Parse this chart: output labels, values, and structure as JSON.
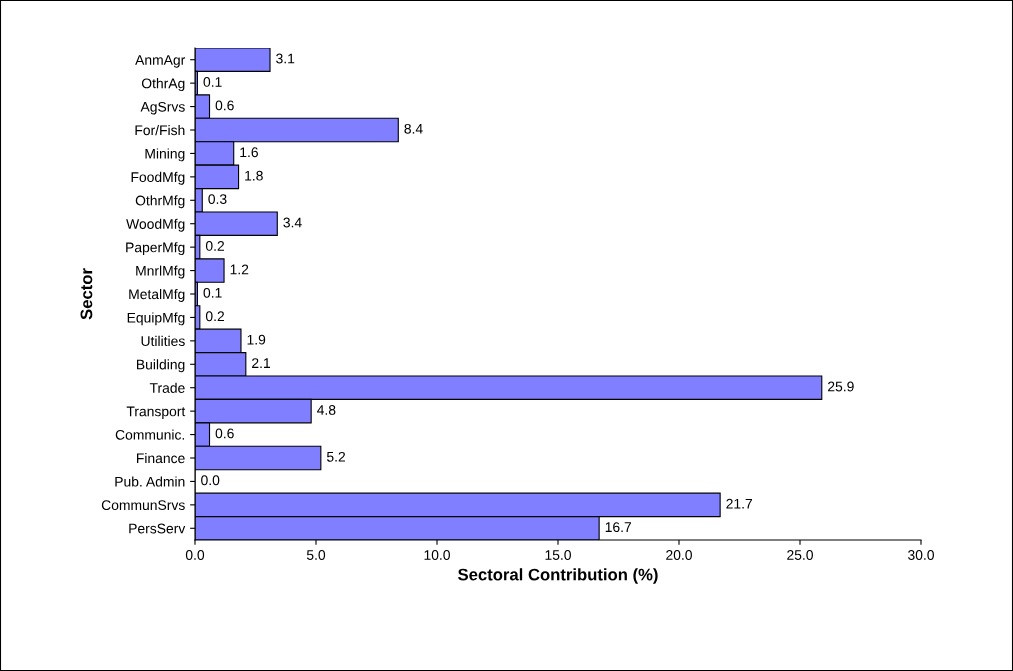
{
  "chart_data": {
    "type": "bar",
    "orientation": "horizontal",
    "xlabel": "Sectoral Contribution (%)",
    "ylabel": "Sector",
    "categories": [
      "AnmAgr",
      "OthrAg",
      "AgSrvs",
      "For/Fish",
      "Mining",
      "FoodMfg",
      "OthrMfg",
      "WoodMfg",
      "PaperMfg",
      "MnrlMfg",
      "MetalMfg",
      "EquipMfg",
      "Utilities",
      "Building",
      "Trade",
      "Transport",
      "Communic.",
      "Finance",
      "Pub. Admin",
      "CommunSrvs",
      "PersServ"
    ],
    "values": [
      3.1,
      0.1,
      0.6,
      8.4,
      1.6,
      1.8,
      0.3,
      3.4,
      0.2,
      1.2,
      0.1,
      0.2,
      1.9,
      2.1,
      25.9,
      4.8,
      0.6,
      5.2,
      0.0,
      21.7,
      16.7
    ],
    "value_labels": [
      "3.1",
      "0.1",
      "0.6",
      "8.4",
      "1.6",
      "1.8",
      "0.3",
      "3.4",
      "0.2",
      "1.2",
      "0.1",
      "0.2",
      "1.9",
      "2.1",
      "25.9",
      "4.8",
      "0.6",
      "5.2",
      "0.0",
      "21.7",
      "16.7"
    ],
    "color": "#7f7fff",
    "xlim": [
      0,
      30
    ],
    "xticks": [
      {
        "value": 0,
        "label": "0.0"
      },
      {
        "value": 5,
        "label": "5.0"
      },
      {
        "value": 10,
        "label": "10.0"
      },
      {
        "value": 15,
        "label": "15.0"
      },
      {
        "value": 20,
        "label": "20.0"
      },
      {
        "value": 25,
        "label": "25.0"
      },
      {
        "value": 30,
        "label": "30.0"
      }
    ],
    "grid": false,
    "legend": false
  }
}
